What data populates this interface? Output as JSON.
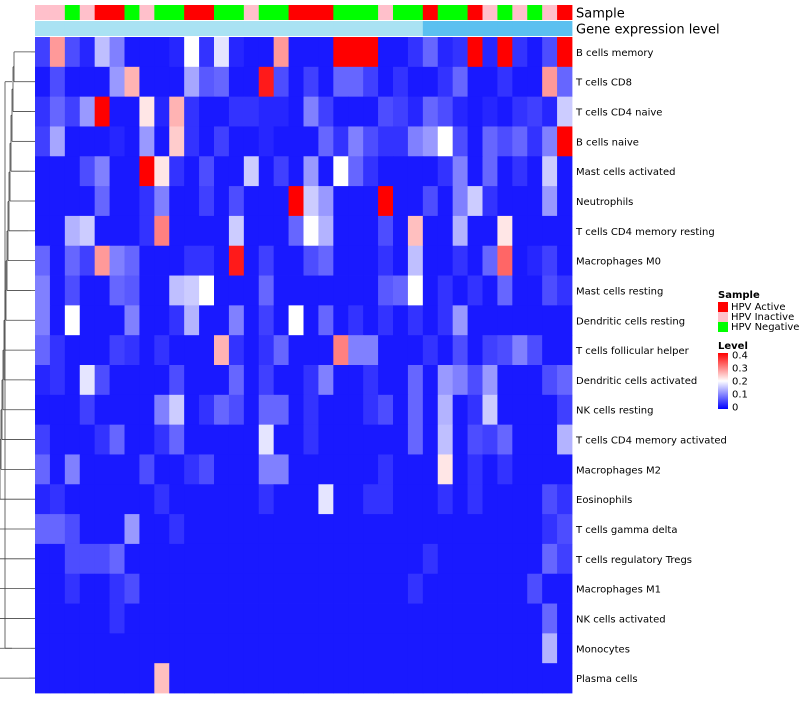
{
  "chart_data": {
    "type": "heatmap",
    "annotation_tracks": [
      {
        "name": "Sample",
        "values": [
          "Inactive",
          "Inactive",
          "Negative",
          "Inactive",
          "Active",
          "Active",
          "Negative",
          "Inactive",
          "Negative",
          "Negative",
          "Active",
          "Active",
          "Negative",
          "Negative",
          "Inactive",
          "Negative",
          "Negative",
          "Active",
          "Active",
          "Active",
          "Negative",
          "Negative",
          "Negative",
          "Inactive",
          "Negative",
          "Negative",
          "Active",
          "Negative",
          "Negative",
          "Active",
          "Inactive",
          "Negative",
          "Inactive",
          "Negative",
          "Inactive",
          "Active"
        ]
      },
      {
        "name": "Gene expression level",
        "values": [
          "Low",
          "Low",
          "Low",
          "Low",
          "Low",
          "Low",
          "Low",
          "Low",
          "Low",
          "Low",
          "Low",
          "Low",
          "Low",
          "Low",
          "Low",
          "Low",
          "Low",
          "Low",
          "Low",
          "Low",
          "Low",
          "Low",
          "Low",
          "Low",
          "Low",
          "Low",
          "High",
          "High",
          "High",
          "High",
          "High",
          "High",
          "High",
          "High",
          "High",
          "High"
        ]
      }
    ],
    "rows": [
      "B cells memory",
      "T cells CD8",
      "T cells CD4 naive",
      "B cells naive",
      "Mast cells activated",
      "Neutrophils",
      "T cells CD4 memory resting",
      "Macrophages M0",
      "Mast cells resting",
      "Dendritic cells resting",
      "T cells follicular helper",
      "Dendritic cells activated",
      "NK cells resting",
      "T cells CD4 memory activated",
      "Macrophages M2",
      "Eosinophils",
      "T cells gamma delta",
      "T cells regulatory  Tregs",
      "Macrophages M1",
      "NK cells activated",
      "Monocytes",
      "Plasma cells"
    ],
    "values": [
      [
        0.05,
        0.28,
        0.06,
        0.03,
        0.15,
        0.1,
        0.02,
        0.02,
        0.02,
        0.03,
        0.2,
        0.04,
        0.18,
        0.03,
        0.02,
        0.02,
        0.28,
        0.02,
        0.02,
        0.02,
        0.4,
        0.4,
        0.4,
        0.02,
        0.02,
        0.04,
        0.08,
        0.03,
        0.04,
        0.4,
        0.03,
        0.4,
        0.04,
        0.02,
        0.06,
        0.4
      ],
      [
        0.02,
        0.06,
        0.02,
        0.02,
        0.02,
        0.12,
        0.26,
        0.02,
        0.02,
        0.02,
        0.13,
        0.07,
        0.08,
        0.02,
        0.02,
        0.38,
        0.06,
        0.02,
        0.05,
        0.02,
        0.08,
        0.08,
        0.05,
        0.02,
        0.04,
        0.02,
        0.02,
        0.04,
        0.08,
        0.02,
        0.02,
        0.04,
        0.02,
        0.02,
        0.28,
        0.08
      ],
      [
        0.04,
        0.08,
        0.05,
        0.12,
        0.4,
        0.02,
        0.02,
        0.22,
        0.03,
        0.26,
        0.04,
        0.02,
        0.02,
        0.04,
        0.04,
        0.03,
        0.03,
        0.02,
        0.1,
        0.05,
        0.02,
        0.02,
        0.02,
        0.06,
        0.05,
        0.03,
        0.08,
        0.06,
        0.03,
        0.02,
        0.03,
        0.02,
        0.04,
        0.05,
        0.03,
        0.16
      ],
      [
        0.05,
        0.13,
        0.02,
        0.02,
        0.02,
        0.03,
        0.02,
        0.12,
        0.02,
        0.24,
        0.04,
        0.02,
        0.05,
        0.02,
        0.02,
        0.03,
        0.02,
        0.02,
        0.02,
        0.08,
        0.04,
        0.1,
        0.06,
        0.04,
        0.04,
        0.1,
        0.12,
        0.2,
        0.06,
        0.02,
        0.08,
        0.06,
        0.08,
        0.04,
        0.1,
        0.4
      ],
      [
        0.02,
        0.02,
        0.02,
        0.06,
        0.1,
        0.02,
        0.02,
        0.4,
        0.22,
        0.04,
        0.02,
        0.06,
        0.02,
        0.02,
        0.16,
        0.02,
        0.05,
        0.02,
        0.12,
        0.02,
        0.2,
        0.08,
        0.04,
        0.02,
        0.02,
        0.02,
        0.02,
        0.04,
        0.1,
        0.02,
        0.08,
        0.02,
        0.04,
        0.02,
        0.16,
        0.02
      ],
      [
        0.02,
        0.02,
        0.02,
        0.02,
        0.08,
        0.02,
        0.02,
        0.04,
        0.1,
        0.02,
        0.02,
        0.05,
        0.02,
        0.06,
        0.02,
        0.02,
        0.02,
        0.4,
        0.16,
        0.12,
        0.02,
        0.02,
        0.02,
        0.4,
        0.02,
        0.02,
        0.06,
        0.02,
        0.1,
        0.16,
        0.04,
        0.02,
        0.02,
        0.02,
        0.12,
        0.02
      ],
      [
        0.02,
        0.02,
        0.14,
        0.16,
        0.02,
        0.02,
        0.02,
        0.04,
        0.3,
        0.02,
        0.02,
        0.02,
        0.02,
        0.16,
        0.02,
        0.02,
        0.02,
        0.08,
        0.2,
        0.14,
        0.02,
        0.02,
        0.02,
        0.06,
        0.02,
        0.25,
        0.02,
        0.02,
        0.14,
        0.02,
        0.02,
        0.22,
        0.02,
        0.02,
        0.02,
        0.02
      ],
      [
        0.08,
        0.02,
        0.08,
        0.05,
        0.28,
        0.1,
        0.08,
        0.02,
        0.02,
        0.02,
        0.04,
        0.04,
        0.02,
        0.38,
        0.02,
        0.05,
        0.02,
        0.02,
        0.06,
        0.08,
        0.02,
        0.02,
        0.02,
        0.04,
        0.02,
        0.15,
        0.02,
        0.02,
        0.04,
        0.02,
        0.08,
        0.32,
        0.02,
        0.03,
        0.05,
        0.02
      ],
      [
        0.1,
        0.02,
        0.06,
        0.02,
        0.02,
        0.08,
        0.07,
        0.02,
        0.02,
        0.15,
        0.16,
        0.2,
        0.02,
        0.02,
        0.02,
        0.08,
        0.02,
        0.02,
        0.02,
        0.02,
        0.02,
        0.02,
        0.02,
        0.07,
        0.08,
        0.2,
        0.02,
        0.04,
        0.02,
        0.04,
        0.02,
        0.08,
        0.02,
        0.02,
        0.06,
        0.04
      ],
      [
        0.1,
        0.02,
        0.2,
        0.02,
        0.02,
        0.02,
        0.1,
        0.02,
        0.02,
        0.04,
        0.14,
        0.02,
        0.02,
        0.1,
        0.02,
        0.05,
        0.02,
        0.2,
        0.02,
        0.08,
        0.02,
        0.04,
        0.02,
        0.04,
        0.02,
        0.04,
        0.02,
        0.04,
        0.12,
        0.02,
        0.02,
        0.02,
        0.02,
        0.02,
        0.02,
        0.02
      ],
      [
        0.08,
        0.04,
        0.02,
        0.02,
        0.02,
        0.05,
        0.04,
        0.02,
        0.04,
        0.02,
        0.02,
        0.02,
        0.26,
        0.04,
        0.02,
        0.04,
        0.08,
        0.02,
        0.02,
        0.02,
        0.3,
        0.1,
        0.1,
        0.02,
        0.02,
        0.02,
        0.04,
        0.02,
        0.06,
        0.02,
        0.05,
        0.06,
        0.1,
        0.06,
        0.02,
        0.02
      ],
      [
        0.03,
        0.04,
        0.02,
        0.18,
        0.06,
        0.02,
        0.02,
        0.02,
        0.02,
        0.06,
        0.02,
        0.02,
        0.02,
        0.08,
        0.02,
        0.05,
        0.02,
        0.02,
        0.04,
        0.1,
        0.02,
        0.02,
        0.04,
        0.02,
        0.02,
        0.08,
        0.02,
        0.12,
        0.1,
        0.06,
        0.12,
        0.02,
        0.02,
        0.02,
        0.06,
        0.08
      ],
      [
        0.02,
        0.02,
        0.02,
        0.05,
        0.02,
        0.02,
        0.02,
        0.02,
        0.1,
        0.16,
        0.02,
        0.04,
        0.08,
        0.06,
        0.02,
        0.08,
        0.08,
        0.02,
        0.04,
        0.02,
        0.02,
        0.02,
        0.04,
        0.06,
        0.02,
        0.08,
        0.02,
        0.14,
        0.02,
        0.04,
        0.16,
        0.02,
        0.02,
        0.02,
        0.02,
        0.05
      ],
      [
        0.05,
        0.02,
        0.02,
        0.02,
        0.04,
        0.08,
        0.02,
        0.02,
        0.04,
        0.08,
        0.02,
        0.02,
        0.02,
        0.02,
        0.02,
        0.18,
        0.02,
        0.02,
        0.04,
        0.02,
        0.02,
        0.02,
        0.02,
        0.02,
        0.02,
        0.08,
        0.02,
        0.15,
        0.02,
        0.06,
        0.05,
        0.08,
        0.02,
        0.02,
        0.02,
        0.14
      ],
      [
        0.08,
        0.02,
        0.1,
        0.02,
        0.02,
        0.02,
        0.02,
        0.06,
        0.02,
        0.02,
        0.04,
        0.06,
        0.02,
        0.02,
        0.02,
        0.1,
        0.1,
        0.02,
        0.02,
        0.02,
        0.02,
        0.02,
        0.02,
        0.04,
        0.02,
        0.02,
        0.02,
        0.22,
        0.02,
        0.04,
        0.02,
        0.04,
        0.02,
        0.02,
        0.02,
        0.02
      ],
      [
        0.03,
        0.04,
        0.02,
        0.02,
        0.02,
        0.02,
        0.02,
        0.02,
        0.04,
        0.02,
        0.02,
        0.02,
        0.02,
        0.02,
        0.02,
        0.04,
        0.02,
        0.02,
        0.02,
        0.18,
        0.02,
        0.02,
        0.04,
        0.04,
        0.02,
        0.02,
        0.02,
        0.04,
        0.02,
        0.04,
        0.02,
        0.02,
        0.02,
        0.02,
        0.06,
        0.04
      ],
      [
        0.08,
        0.08,
        0.06,
        0.02,
        0.02,
        0.02,
        0.12,
        0.02,
        0.02,
        0.04,
        0.02,
        0.02,
        0.02,
        0.02,
        0.02,
        0.02,
        0.02,
        0.02,
        0.02,
        0.02,
        0.02,
        0.02,
        0.02,
        0.02,
        0.02,
        0.02,
        0.02,
        0.02,
        0.02,
        0.02,
        0.02,
        0.02,
        0.02,
        0.02,
        0.04,
        0.06
      ],
      [
        0.02,
        0.02,
        0.06,
        0.06,
        0.06,
        0.08,
        0.02,
        0.02,
        0.02,
        0.02,
        0.02,
        0.02,
        0.02,
        0.02,
        0.02,
        0.02,
        0.02,
        0.02,
        0.02,
        0.02,
        0.02,
        0.02,
        0.02,
        0.02,
        0.02,
        0.02,
        0.04,
        0.02,
        0.02,
        0.02,
        0.02,
        0.02,
        0.02,
        0.02,
        0.08,
        0.05
      ],
      [
        0.02,
        0.02,
        0.04,
        0.02,
        0.02,
        0.04,
        0.06,
        0.02,
        0.02,
        0.02,
        0.02,
        0.02,
        0.02,
        0.02,
        0.02,
        0.02,
        0.02,
        0.02,
        0.02,
        0.02,
        0.02,
        0.02,
        0.02,
        0.02,
        0.02,
        0.04,
        0.02,
        0.02,
        0.02,
        0.02,
        0.02,
        0.02,
        0.02,
        0.06,
        0.02,
        0.02
      ],
      [
        0.02,
        0.02,
        0.02,
        0.02,
        0.02,
        0.04,
        0.02,
        0.02,
        0.02,
        0.02,
        0.02,
        0.02,
        0.02,
        0.02,
        0.02,
        0.02,
        0.02,
        0.02,
        0.02,
        0.02,
        0.02,
        0.02,
        0.02,
        0.02,
        0.02,
        0.02,
        0.02,
        0.02,
        0.02,
        0.02,
        0.02,
        0.02,
        0.02,
        0.02,
        0.08,
        0.02
      ],
      [
        0.02,
        0.02,
        0.02,
        0.02,
        0.02,
        0.02,
        0.02,
        0.02,
        0.02,
        0.02,
        0.02,
        0.02,
        0.02,
        0.02,
        0.02,
        0.02,
        0.02,
        0.02,
        0.02,
        0.02,
        0.02,
        0.02,
        0.02,
        0.02,
        0.02,
        0.02,
        0.02,
        0.02,
        0.02,
        0.02,
        0.02,
        0.02,
        0.02,
        0.02,
        0.14,
        0.02
      ],
      [
        0.02,
        0.02,
        0.02,
        0.02,
        0.02,
        0.02,
        0.02,
        0.02,
        0.25,
        0.02,
        0.02,
        0.02,
        0.02,
        0.02,
        0.02,
        0.02,
        0.02,
        0.02,
        0.02,
        0.02,
        0.02,
        0.02,
        0.02,
        0.02,
        0.02,
        0.02,
        0.02,
        0.02,
        0.02,
        0.02,
        0.02,
        0.02,
        0.02,
        0.02,
        0.02,
        0.02
      ]
    ],
    "color_scale": {
      "min": 0,
      "mid": 0.2,
      "max": 0.4,
      "low": "#0000ff",
      "midcolor": "#ffffff",
      "high": "#ff0000"
    },
    "track_colors": {
      "Sample": {
        "Active": "#ff0000",
        "Inactive": "#ffc0cb",
        "Negative": "#00ff00"
      },
      "Gene expression level": {
        "Low": "#a9e2f3",
        "High": "#5bc0f0"
      }
    },
    "legends": [
      {
        "title": "Sample",
        "items": [
          {
            "label": "HPV Active",
            "color": "#ff0000"
          },
          {
            "label": "HPV Inactive",
            "color": "#ffc0cb"
          },
          {
            "label": "HPV Negative",
            "color": "#00ff00"
          }
        ]
      },
      {
        "title": "Level",
        "ticks": [
          "0.4",
          "0.3",
          "0.2",
          "0.1",
          "0"
        ]
      }
    ],
    "legend_placement": "right",
    "dendrogram": "rows, left"
  }
}
